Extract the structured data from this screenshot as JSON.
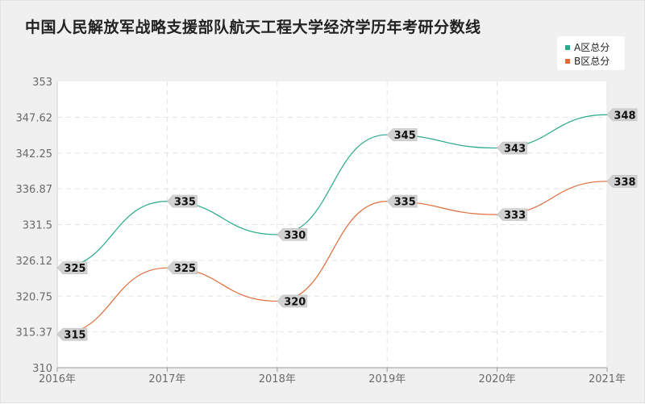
{
  "chart_data": {
    "type": "line",
    "title": "中国人民解放军战略支援部队航天工程大学经济学历年考研分数线",
    "categories": [
      "2016年",
      "2017年",
      "2018年",
      "2019年",
      "2020年",
      "2021年"
    ],
    "series": [
      {
        "name": "A区总分",
        "color": "#27a98b",
        "values": [
          325,
          335,
          330,
          345,
          343,
          348
        ]
      },
      {
        "name": "B区总分",
        "color": "#e06c3a",
        "values": [
          315,
          325,
          320,
          335,
          333,
          338
        ]
      }
    ],
    "yticks": [
      "353",
      "347.62",
      "342.25",
      "336.87",
      "331.5",
      "326.12",
      "320.75",
      "315.37",
      "310"
    ],
    "ylim": [
      310,
      353
    ],
    "grid": true,
    "legend_position": "top-right",
    "xlabel": "",
    "ylabel": ""
  }
}
